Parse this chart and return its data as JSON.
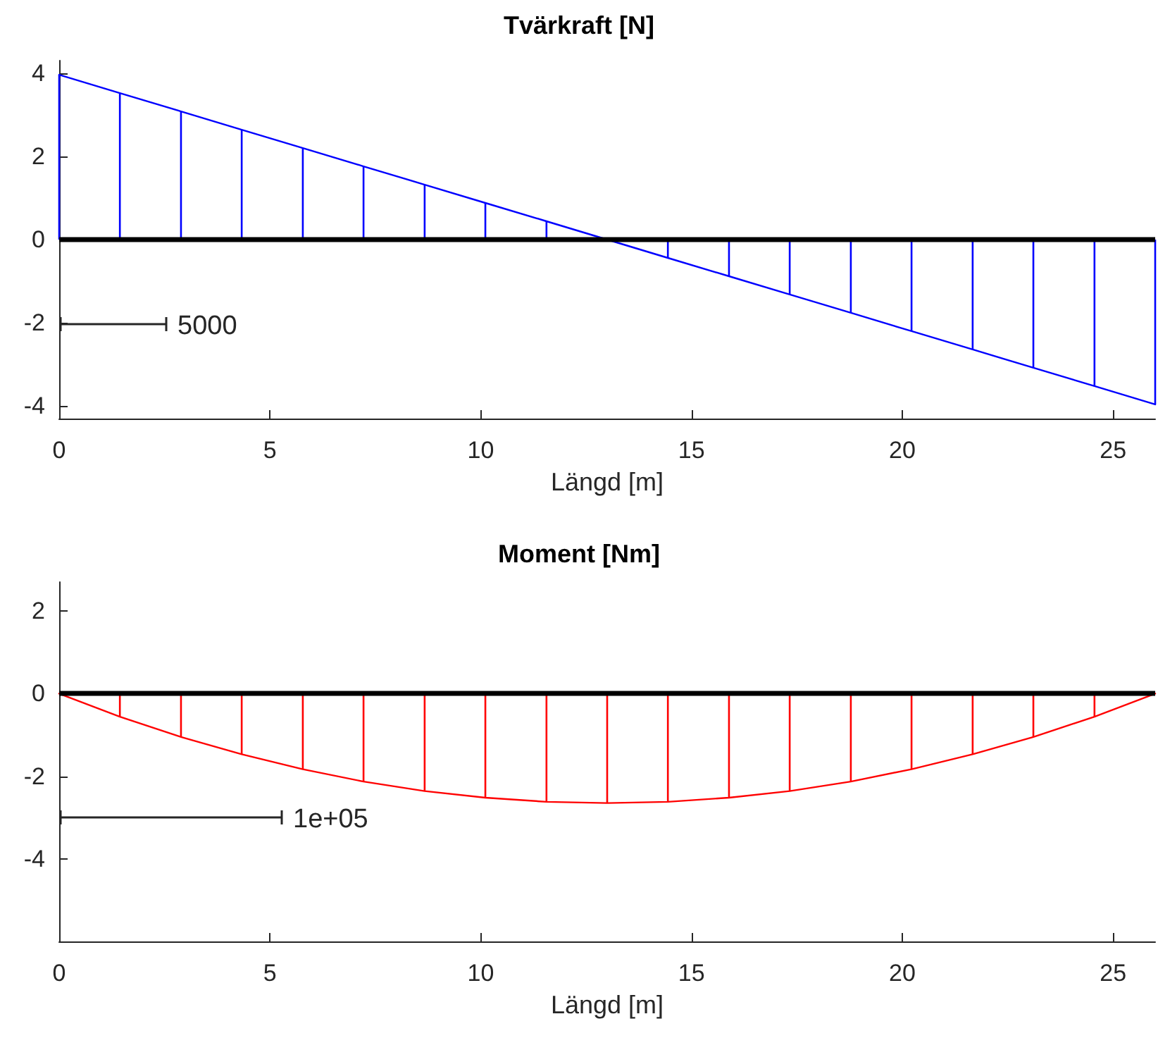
{
  "chart_data": [
    {
      "type": "line",
      "title": "Tvärkraft [N]",
      "xlabel": "Längd [m]",
      "x": [
        0,
        1.44,
        2.89,
        4.33,
        5.78,
        7.22,
        8.67,
        10.11,
        11.56,
        13,
        14.44,
        15.89,
        17.33,
        18.78,
        20.22,
        21.67,
        23.11,
        24.56,
        26
      ],
      "series": [
        {
          "color": "#0000ff",
          "values": [
            3.96,
            3.52,
            3.08,
            2.64,
            2.2,
            1.76,
            1.32,
            0.88,
            0.44,
            0,
            -0.44,
            -0.88,
            -1.32,
            -1.76,
            -2.2,
            -2.64,
            -3.08,
            -3.52,
            -3.96
          ]
        },
        {
          "type": "bar",
          "color": "#0000ff",
          "values": [
            3.96,
            3.52,
            3.08,
            2.64,
            2.2,
            1.76,
            1.32,
            0.88,
            0.44,
            0,
            -0.44,
            -0.88,
            -1.32,
            -1.76,
            -2.2,
            -2.64,
            -3.08,
            -3.52,
            -3.96
          ]
        }
      ],
      "xlim": [
        0,
        26
      ],
      "xticks": [
        0,
        5,
        10,
        15,
        20,
        25
      ],
      "ylim": [
        -4.3,
        4.3
      ],
      "yticks": [
        -4,
        -2,
        0,
        2,
        4
      ],
      "ref_lines": [
        {
          "axis": "y",
          "value": 0,
          "color": "#000000"
        }
      ],
      "annotations": [
        "5000"
      ],
      "marker": "none",
      "grid": false
    },
    {
      "type": "line",
      "title": "Moment [Nm]",
      "xlabel": "Längd [m]",
      "x": [
        0,
        1.44,
        2.89,
        4.33,
        5.78,
        7.22,
        8.67,
        10.11,
        11.56,
        13,
        14.44,
        15.89,
        17.33,
        18.78,
        20.22,
        21.67,
        23.11,
        24.56,
        26
      ],
      "series": [
        {
          "color": "#ff0000",
          "values": [
            0,
            -0.56,
            -1.05,
            -1.47,
            -1.83,
            -2.13,
            -2.36,
            -2.52,
            -2.62,
            -2.65,
            -2.62,
            -2.52,
            -2.36,
            -2.13,
            -1.83,
            -1.47,
            -1.05,
            -0.56,
            0
          ]
        },
        {
          "type": "bar",
          "color": "#ff0000",
          "values": [
            0,
            -0.56,
            -1.05,
            -1.47,
            -1.83,
            -2.13,
            -2.36,
            -2.52,
            -2.62,
            -2.65,
            -2.62,
            -2.52,
            -2.36,
            -2.13,
            -1.83,
            -1.47,
            -1.05,
            -0.56,
            0
          ]
        }
      ],
      "xlim": [
        0,
        26
      ],
      "xticks": [
        0,
        5,
        10,
        15,
        20,
        25
      ],
      "ylim": [
        -6,
        2.7
      ],
      "yticks": [
        -4,
        -2,
        0,
        2
      ],
      "ref_lines": [
        {
          "axis": "y",
          "value": 0,
          "color": "#000000"
        }
      ],
      "annotations": [
        "1e+05"
      ],
      "marker": "none",
      "grid": false
    }
  ]
}
